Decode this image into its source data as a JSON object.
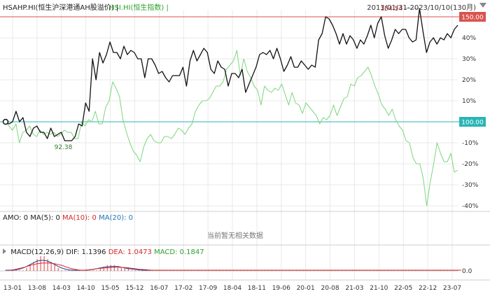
{
  "header": {
    "series_a_label": "HSAHP.HI(恒生沪深港通AH股溢价) |",
    "series_b_label": "HSI.HI(恒生指数) |",
    "date_range": "2013/01/31-2023/10/10(130月)"
  },
  "indicators": {
    "amo_prefix": "AMO: 0",
    "ma5": "MA(5): 0",
    "ma10": "MA(10): 0",
    "ma20": "MA(20): 0",
    "empty_text": "当前暂无相关数据",
    "macd_prefix": "MACD(12,26,9)",
    "dif": "DIF: 1.1396",
    "dea": "DEA: 1.0473",
    "macd_value": "MACD: 0.1847",
    "macd_axis_label": "0.0"
  },
  "colors": {
    "series_a": "#111111",
    "series_b": "#7ed67e",
    "ref_high": "#d9534f",
    "ref_base": "#2bb5b5",
    "macd_bar": "#d62728",
    "dif_line": "#1f3a93",
    "dea_line": "#d62728",
    "grid": "#e9e9e9"
  },
  "chart_data": {
    "type": "line",
    "xlabels": [
      "13-01",
      "13-08",
      "14-03",
      "14-10",
      "15-05",
      "15-12",
      "16-07",
      "17-02",
      "17-09",
      "18-04",
      "18-11",
      "19-06",
      "20-01",
      "20-08",
      "21-03",
      "21-10",
      "22-05",
      "22-12",
      "23-07"
    ],
    "right_axis_ticks": [
      "40%",
      "30%",
      "20%",
      "10%",
      "-10%",
      "-20%",
      "-30%",
      "-40%"
    ],
    "ref_levels": [
      {
        "label": "150.00",
        "value": 150
      },
      {
        "label": "100.00",
        "value": 100
      }
    ],
    "annotations": [
      {
        "label": "154.54",
        "series": "HSAHP.HI",
        "value": 154.54
      },
      {
        "label": "92.38",
        "series": "HSAHP.HI",
        "value": 92.38
      }
    ],
    "ylim_pct": [
      -42,
      53
    ],
    "series": [
      {
        "name": "HSAHP.HI(恒生沪深港通AH股溢价)",
        "unit": "percent vs base 100",
        "values": [
          0,
          -1,
          0,
          5,
          0,
          2,
          -5,
          -7,
          -3,
          -2,
          -5,
          -5,
          -8,
          -3,
          -7,
          -6,
          -5,
          -9,
          -9,
          -9,
          -7,
          -1,
          -2,
          9,
          5,
          30,
          20,
          33,
          28,
          32,
          38,
          33,
          33,
          30,
          36,
          32,
          34,
          33,
          30,
          30,
          21,
          30,
          30,
          27,
          23,
          24,
          21,
          19,
          22,
          22,
          22,
          26,
          17,
          29,
          34,
          29,
          32,
          35,
          33,
          25,
          23,
          29,
          26,
          25,
          17,
          23,
          23,
          21,
          25,
          14,
          18,
          22,
          26,
          32,
          33,
          32,
          34,
          30,
          35,
          30,
          24,
          27,
          31,
          26,
          26,
          29,
          27,
          25,
          27,
          26,
          39,
          42,
          50,
          49,
          46,
          42,
          37,
          42,
          37,
          41,
          39,
          35,
          39,
          37,
          41,
          46,
          40,
          47,
          50,
          41,
          35,
          39,
          44,
          42,
          44,
          44,
          40,
          38,
          39,
          54,
          43,
          33,
          38,
          40,
          37,
          40,
          39,
          42,
          40,
          44,
          46
        ]
      },
      {
        "name": "HSI.HI(恒生指数)",
        "unit": "percent vs base 100",
        "values": [
          0,
          -2,
          -4,
          -1,
          -10,
          -5,
          -4,
          -2,
          -6,
          -7,
          -4,
          -6,
          -5,
          -6,
          -5,
          -7,
          -6,
          -4,
          -5,
          -5,
          -8,
          -8,
          0,
          -2,
          1,
          0,
          5,
          -1,
          -1,
          7,
          10,
          19,
          16,
          12,
          1,
          -5,
          -10,
          -14,
          -16,
          -19,
          -12,
          -8,
          -6,
          -9,
          -10,
          -10,
          -7,
          -7,
          -8,
          -6,
          -3,
          -4,
          -6,
          -3,
          -1,
          5,
          8,
          10,
          10,
          11,
          14,
          17,
          17,
          19,
          25,
          27,
          29,
          34,
          22,
          30,
          24,
          21,
          17,
          15,
          8,
          17,
          15,
          14,
          16,
          15,
          18,
          13,
          8,
          14,
          9,
          8,
          4,
          9,
          7,
          5,
          3,
          -1,
          2,
          1,
          3,
          8,
          3,
          7,
          11,
          12,
          18,
          17,
          21,
          22,
          24,
          26,
          22,
          17,
          13,
          8,
          6,
          3,
          6,
          1,
          -2,
          -4,
          -9,
          -10,
          -17,
          -20,
          -20,
          -27,
          -40,
          -29,
          -20,
          -10,
          -15,
          -19,
          -19,
          -15,
          -24,
          -23
        ]
      },
      {
        "name": "MACD",
        "values": [
          0,
          0,
          0,
          0,
          0,
          0,
          1,
          2,
          3,
          4,
          5,
          5,
          4,
          3,
          2,
          1,
          0,
          0,
          0,
          0,
          0,
          0,
          0,
          0,
          0,
          0,
          0,
          1,
          1,
          2,
          2,
          2,
          1,
          1,
          1,
          1,
          0,
          0,
          0,
          0,
          0,
          0,
          0,
          0,
          0,
          0,
          0,
          0,
          0,
          0,
          0,
          0,
          0,
          0,
          0,
          0,
          0,
          0,
          0,
          0,
          0,
          0,
          0,
          0,
          0,
          0,
          0,
          0,
          0,
          0,
          0,
          0,
          0,
          0,
          0,
          0,
          0,
          0,
          0,
          0,
          0,
          0,
          0,
          0,
          0,
          0,
          0,
          0,
          0,
          0,
          0,
          0,
          0,
          0,
          0,
          0,
          0,
          0,
          0,
          0,
          0,
          0,
          0,
          0,
          0,
          0,
          0,
          0,
          0,
          0,
          0,
          0,
          0,
          0,
          0,
          0,
          0,
          0,
          0,
          0,
          0,
          0,
          0,
          0,
          0,
          0,
          0,
          0,
          0,
          0
        ]
      }
    ]
  }
}
